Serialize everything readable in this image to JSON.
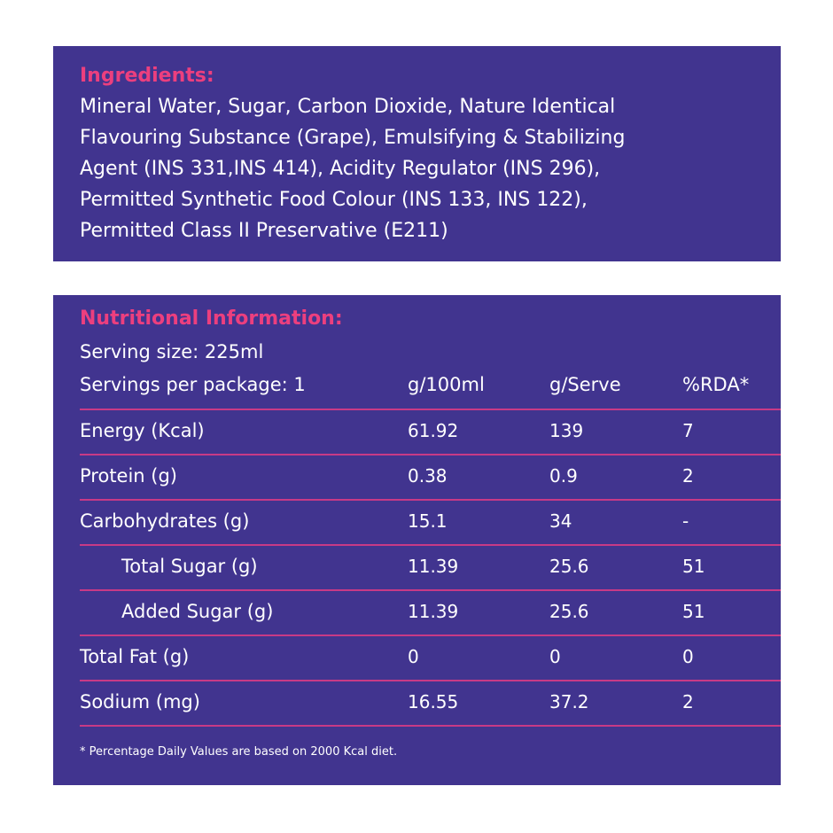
{
  "ingredients": {
    "heading": "Ingredients:",
    "lines": [
      "Mineral Water, Sugar, Carbon Dioxide, Nature Identical",
      "Flavouring Substance (Grape), Emulsifying & Stabilizing",
      "Agent (INS 331,INS 414), Acidity Regulator (INS 296),",
      "Permitted Synthetic Food Colour (INS 133, INS 122),",
      "Permitted Class II Preservative (E211)"
    ]
  },
  "nutrition": {
    "heading": "Nutritional Information:",
    "serving_size": "Serving size: 225ml",
    "servings_per_package": "Servings per package: 1",
    "columns": [
      "g/100ml",
      "g/Serve",
      "%RDA*"
    ],
    "rows": [
      {
        "label": "Energy (Kcal)",
        "per100": "61.92",
        "perServe": "139",
        "rda": "7"
      },
      {
        "label": "Protein (g)",
        "per100": "0.38",
        "perServe": "0.9",
        "rda": "2"
      },
      {
        "label": "Carbohydrates (g)",
        "per100": "15.1",
        "perServe": "34",
        "rda": "-"
      },
      {
        "label": "Total Sugar (g)",
        "per100": "11.39",
        "perServe": "25.6",
        "rda": "51"
      },
      {
        "label": "Added Sugar (g)",
        "per100": "11.39",
        "perServe": "25.6",
        "rda": "51"
      },
      {
        "label": "Total Fat (g)",
        "per100": "0",
        "perServe": "0",
        "rda": "0"
      },
      {
        "label": "Sodium (mg)",
        "per100": "16.55",
        "perServe": "37.2",
        "rda": "2"
      }
    ],
    "footnote": "* Percentage Daily Values are based on 2000 Kcal diet."
  },
  "colors": {
    "panel_background": "#41348f",
    "heading_accent": "#ec3f7e",
    "divider": "#c83a86",
    "text": "#ffffff"
  }
}
